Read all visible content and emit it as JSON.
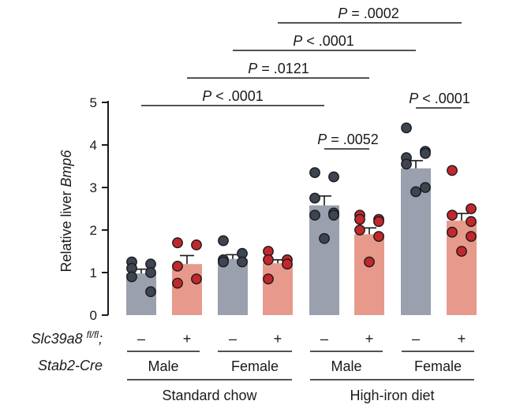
{
  "chart_data": {
    "type": "bar",
    "title": "",
    "ylabel_prefix": "Relative liver ",
    "ylabel_gene": "Bmp6",
    "ylim": [
      0,
      5
    ],
    "yticks": [
      "0",
      "1",
      "2",
      "3",
      "4",
      "5"
    ],
    "colors": {
      "knockout_line": "#9aa0ad",
      "control_line": "#e79a8c",
      "dot_dark": "#3d4452",
      "dot_red": "#c1272d"
    },
    "bars": [
      {
        "sign": "–",
        "group": "dark",
        "mean": 0.98,
        "sem": 0.1,
        "points": [
          1.25,
          1.2,
          1.1,
          1.0,
          0.9,
          0.55
        ]
      },
      {
        "sign": "+",
        "group": "red",
        "mean": 1.2,
        "sem": 0.2,
        "points": [
          1.7,
          1.65,
          1.15,
          0.85,
          0.75
        ]
      },
      {
        "sign": "–",
        "group": "dark",
        "mean": 1.32,
        "sem": 0.1,
        "points": [
          1.75,
          1.45,
          1.3,
          1.25,
          1.25
        ]
      },
      {
        "sign": "+",
        "group": "red",
        "mean": 1.22,
        "sem": 0.08,
        "points": [
          1.5,
          1.3,
          1.3,
          1.2,
          0.85
        ]
      },
      {
        "sign": "–",
        "group": "dark",
        "mean": 2.58,
        "sem": 0.22,
        "points": [
          3.35,
          3.25,
          2.75,
          2.4,
          2.35,
          2.35,
          1.8
        ]
      },
      {
        "sign": "+",
        "group": "red",
        "mean": 1.9,
        "sem": 0.15,
        "points": [
          2.35,
          2.25,
          2.25,
          2.2,
          2.0,
          1.85,
          1.25
        ]
      },
      {
        "sign": "–",
        "group": "dark",
        "mean": 3.45,
        "sem": 0.18,
        "points": [
          4.4,
          3.85,
          3.7,
          3.8,
          3.55,
          3.0,
          2.9
        ]
      },
      {
        "sign": "+",
        "group": "red",
        "mean": 2.22,
        "sem": 0.17,
        "points": [
          3.4,
          2.5,
          2.35,
          2.2,
          1.95,
          1.85,
          1.5
        ]
      }
    ],
    "comparisons": [
      {
        "p_label": "P",
        "p_rest": " = .0002"
      },
      {
        "p_label": "P",
        "p_rest": " < .0001"
      },
      {
        "p_label": "P",
        "p_rest": " = .0121"
      },
      {
        "p_label": "P",
        "p_rest": " < .0001"
      },
      {
        "p_label": "P",
        "p_rest": " = .0052"
      },
      {
        "p_label": "P",
        "p_rest": " < .0001"
      }
    ],
    "row_labels": {
      "gene1": "Slc39a8",
      "gene1_sup": "fl/fl",
      "gene1_suffix": ";",
      "gene2": "Stab2-Cre"
    },
    "sex_labels": [
      "Male",
      "Female",
      "Male",
      "Female"
    ],
    "diet_labels": [
      "Standard chow",
      "High-iron diet"
    ]
  }
}
